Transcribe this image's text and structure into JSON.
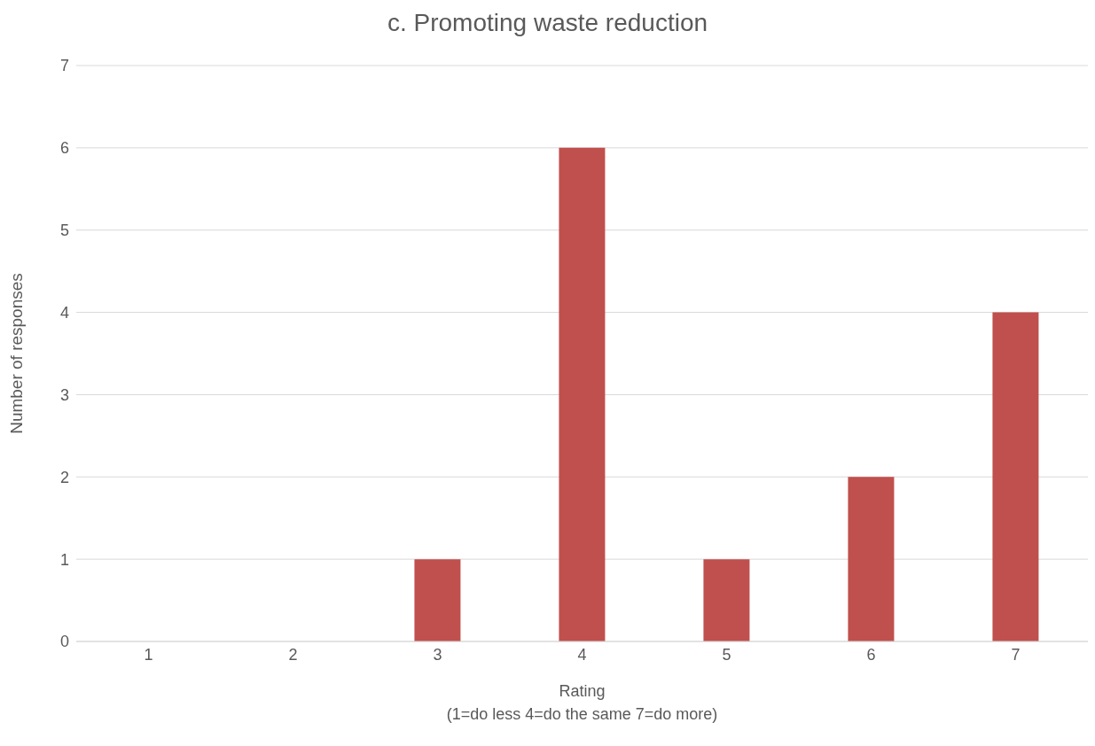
{
  "chart_data": {
    "type": "bar",
    "title": "c. Promoting waste reduction",
    "xlabel": "Rating\n(1=do less 4=do the same 7=do more)",
    "ylabel": "Number of responses",
    "categories": [
      "1",
      "2",
      "3",
      "4",
      "5",
      "6",
      "7"
    ],
    "values": [
      0,
      0,
      1,
      6,
      1,
      2,
      4
    ],
    "color": "#c0504d",
    "ylim": [
      0,
      7
    ],
    "yticks": [
      0,
      1,
      2,
      3,
      4,
      5,
      6,
      7
    ],
    "grid": "y",
    "legend": false
  }
}
